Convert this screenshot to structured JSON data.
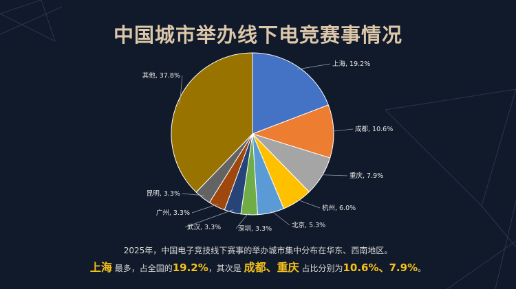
{
  "title": "中国城市举办线下电竞赛事情况",
  "chart_data": {
    "type": "pie",
    "title": "中国城市举办线下电竞赛事情况",
    "start_angle": "12 o'clock, clockwise",
    "categories": [
      "上海",
      "成都",
      "重庆",
      "杭州",
      "北京",
      "深圳",
      "武汉",
      "广州",
      "昆明",
      "其他"
    ],
    "values": [
      19.2,
      10.6,
      7.9,
      6.0,
      5.3,
      3.3,
      3.3,
      3.3,
      3.3,
      37.8
    ],
    "unit": "%",
    "colors": [
      "#4472c4",
      "#ed7d31",
      "#a5a5a5",
      "#ffc000",
      "#5b9bd5",
      "#70ad47",
      "#264478",
      "#9e480e",
      "#636363",
      "#997300"
    ],
    "data_labels": [
      "上海, 19.2%",
      "成都, 10.6%",
      "重庆, 7.9%",
      "杭州, 6.0%",
      "北京, 5.3%",
      "深圳, 3.3%",
      "武汉, 3.3%",
      "广州, 3.3%",
      "昆明, 3.3%",
      "其他, 37.8%"
    ]
  },
  "note": {
    "line1": "2025年，中国电子竞技线下赛事的举办城市集中分布在华东、西南地区。",
    "line2": {
      "city1": "上海",
      "t1": " 最多，占全国的",
      "p1": "19.2%",
      "t2": "，其次是 ",
      "city23": "成都、重庆",
      "t3": " 占比分别为",
      "p23": "10.6%、7.9%",
      "t4": "。"
    }
  }
}
